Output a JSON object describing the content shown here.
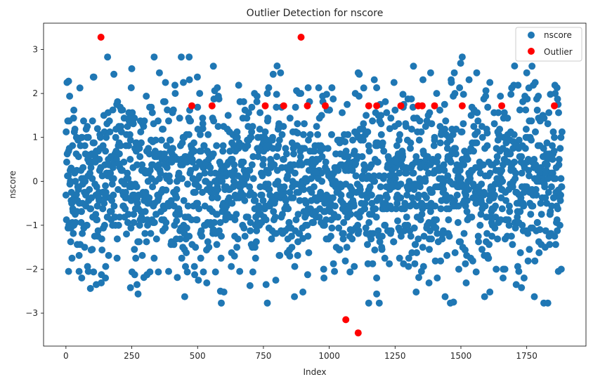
{
  "chart_data": {
    "type": "scatter",
    "title": "Outlier Detection for nscore",
    "xlabel": "Index",
    "ylabel": "nscore",
    "xlim": [
      -85,
      1975
    ],
    "ylim": [
      -3.75,
      3.6
    ],
    "grid": false,
    "legend_position": "upper right",
    "x_ticks": [
      0,
      250,
      500,
      750,
      1000,
      1250,
      1500,
      1750
    ],
    "y_ticks": [
      -3,
      -2,
      -1,
      0,
      1,
      2,
      3
    ],
    "x_tick_labels": [
      "0",
      "250",
      "500",
      "750",
      "1000",
      "1250",
      "1500",
      "1750"
    ],
    "y_tick_labels": [
      "−3",
      "−2",
      "−1",
      "0",
      "1",
      "2",
      "3"
    ],
    "n_points": 1885,
    "series": [
      {
        "name": "nscore",
        "color": "#1f77b4",
        "note_values": "1885 points, nscore values spread across the index 0–1884, mostly within [-2.8, 2.8]",
        "points": [
          [
            10,
            2.28
          ],
          [
            158,
            2.83
          ],
          [
            335,
            2.83
          ],
          [
            438,
            2.83
          ],
          [
            468,
            2.83
          ],
          [
            1505,
            2.83
          ],
          [
            560,
            2.62
          ],
          [
            1320,
            2.62
          ],
          [
            1770,
            2.62
          ],
          [
            355,
            2.47
          ],
          [
            815,
            2.47
          ],
          [
            1110,
            2.47
          ],
          [
            1385,
            2.47
          ],
          [
            1475,
            2.47
          ],
          [
            1560,
            2.47
          ],
          [
            1750,
            2.47
          ],
          [
            248,
            2.13
          ],
          [
            575,
            2.13
          ],
          [
            770,
            2.13
          ],
          [
            920,
            2.13
          ],
          [
            960,
            2.13
          ],
          [
            1010,
            2.13
          ],
          [
            1180,
            2.13
          ],
          [
            1495,
            2.13
          ],
          [
            1865,
            2.13
          ],
          [
            800,
            1.98
          ],
          [
            990,
            1.98
          ],
          [
            1280,
            1.98
          ],
          [
            1510,
            1.98
          ],
          [
            1690,
            1.98
          ],
          [
            1840,
            1.98
          ],
          [
            30,
            1.62
          ],
          [
            210,
            1.62
          ],
          [
            470,
            1.62
          ],
          [
            680,
            1.62
          ],
          [
            1000,
            1.62
          ],
          [
            1250,
            1.62
          ],
          [
            1420,
            1.62
          ],
          [
            1550,
            1.62
          ],
          [
            1790,
            1.62
          ],
          [
            60,
            1.0
          ],
          [
            120,
            1.2
          ],
          [
            330,
            0.9
          ],
          [
            520,
            1.2
          ],
          [
            700,
            1.0
          ],
          [
            880,
            1.1
          ],
          [
            1060,
            0.9
          ],
          [
            1230,
            1.2
          ],
          [
            1400,
            1.0
          ],
          [
            1600,
            1.1
          ],
          [
            1700,
            0.9
          ],
          [
            1880,
            1.0
          ],
          [
            20,
            0.3
          ],
          [
            90,
            0.6
          ],
          [
            200,
            0.4
          ],
          [
            300,
            0.2
          ],
          [
            400,
            0.5
          ],
          [
            600,
            0.3
          ],
          [
            750,
            0.5
          ],
          [
            950,
            0.2
          ],
          [
            1100,
            0.4
          ],
          [
            1300,
            0.3
          ],
          [
            1450,
            0.5
          ],
          [
            1650,
            0.2
          ],
          [
            1820,
            0.4
          ],
          [
            40,
            -0.3
          ],
          [
            150,
            -0.1
          ],
          [
            270,
            -0.4
          ],
          [
            380,
            -0.2
          ],
          [
            500,
            -0.5
          ],
          [
            640,
            -0.1
          ],
          [
            820,
            -0.3
          ],
          [
            970,
            -0.4
          ],
          [
            1150,
            -0.2
          ],
          [
            1350,
            -0.5
          ],
          [
            1520,
            -0.1
          ],
          [
            1720,
            -0.3
          ],
          [
            1870,
            -0.2
          ],
          [
            80,
            -1.0
          ],
          [
            230,
            -1.2
          ],
          [
            420,
            -0.9
          ],
          [
            560,
            -1.1
          ],
          [
            720,
            -1.0
          ],
          [
            900,
            -1.3
          ],
          [
            1080,
            -1.1
          ],
          [
            1260,
            -0.9
          ],
          [
            1430,
            -1.2
          ],
          [
            1620,
            -1.0
          ],
          [
            1800,
            -1.1
          ],
          [
            100,
            -1.55
          ],
          [
            260,
            -1.55
          ],
          [
            450,
            -1.55
          ],
          [
            640,
            -1.7
          ],
          [
            850,
            -1.7
          ],
          [
            1040,
            -1.55
          ],
          [
            1200,
            -1.55
          ],
          [
            1380,
            -1.55
          ],
          [
            1580,
            -1.55
          ],
          [
            1760,
            -1.55
          ],
          [
            10,
            -2.05
          ],
          [
            50,
            -2.05
          ],
          [
            85,
            -2.05
          ],
          [
            390,
            -2.05
          ],
          [
            660,
            -2.05
          ],
          [
            1020,
            -2.05
          ],
          [
            1350,
            -2.05
          ],
          [
            1720,
            -2.05
          ],
          [
            1870,
            -2.05
          ],
          [
            60,
            -2.2
          ],
          [
            150,
            -2.2
          ],
          [
            980,
            -2.2
          ],
          [
            1180,
            -2.2
          ],
          [
            1410,
            -2.2
          ],
          [
            1660,
            -2.2
          ],
          [
            1740,
            -2.2
          ],
          [
            115,
            -2.35
          ],
          [
            270,
            -2.35
          ],
          [
            760,
            -2.35
          ],
          [
            1710,
            -2.35
          ],
          [
            245,
            -2.42
          ],
          [
            1730,
            -2.42
          ],
          [
            600,
            -2.52
          ],
          [
            900,
            -2.52
          ],
          [
            1330,
            -2.52
          ],
          [
            1610,
            -2.52
          ],
          [
            590,
            -2.77
          ],
          [
            765,
            -2.77
          ],
          [
            1150,
            -2.77
          ],
          [
            1190,
            -2.77
          ],
          [
            1460,
            -2.77
          ],
          [
            1815,
            -2.77
          ],
          [
            1830,
            -2.77
          ]
        ]
      },
      {
        "name": "Outlier",
        "color": "#ff0000",
        "points": [
          [
            133,
            3.28
          ],
          [
            893,
            3.28
          ],
          [
            478,
            1.72
          ],
          [
            555,
            1.72
          ],
          [
            757,
            1.72
          ],
          [
            827,
            1.72
          ],
          [
            917,
            1.72
          ],
          [
            985,
            1.72
          ],
          [
            1150,
            1.72
          ],
          [
            1180,
            1.72
          ],
          [
            1272,
            1.72
          ],
          [
            1338,
            1.72
          ],
          [
            1353,
            1.72
          ],
          [
            1400,
            1.72
          ],
          [
            1505,
            1.72
          ],
          [
            1655,
            1.72
          ],
          [
            1855,
            1.72
          ],
          [
            1063,
            -3.15
          ],
          [
            1110,
            -3.45
          ]
        ]
      }
    ]
  }
}
